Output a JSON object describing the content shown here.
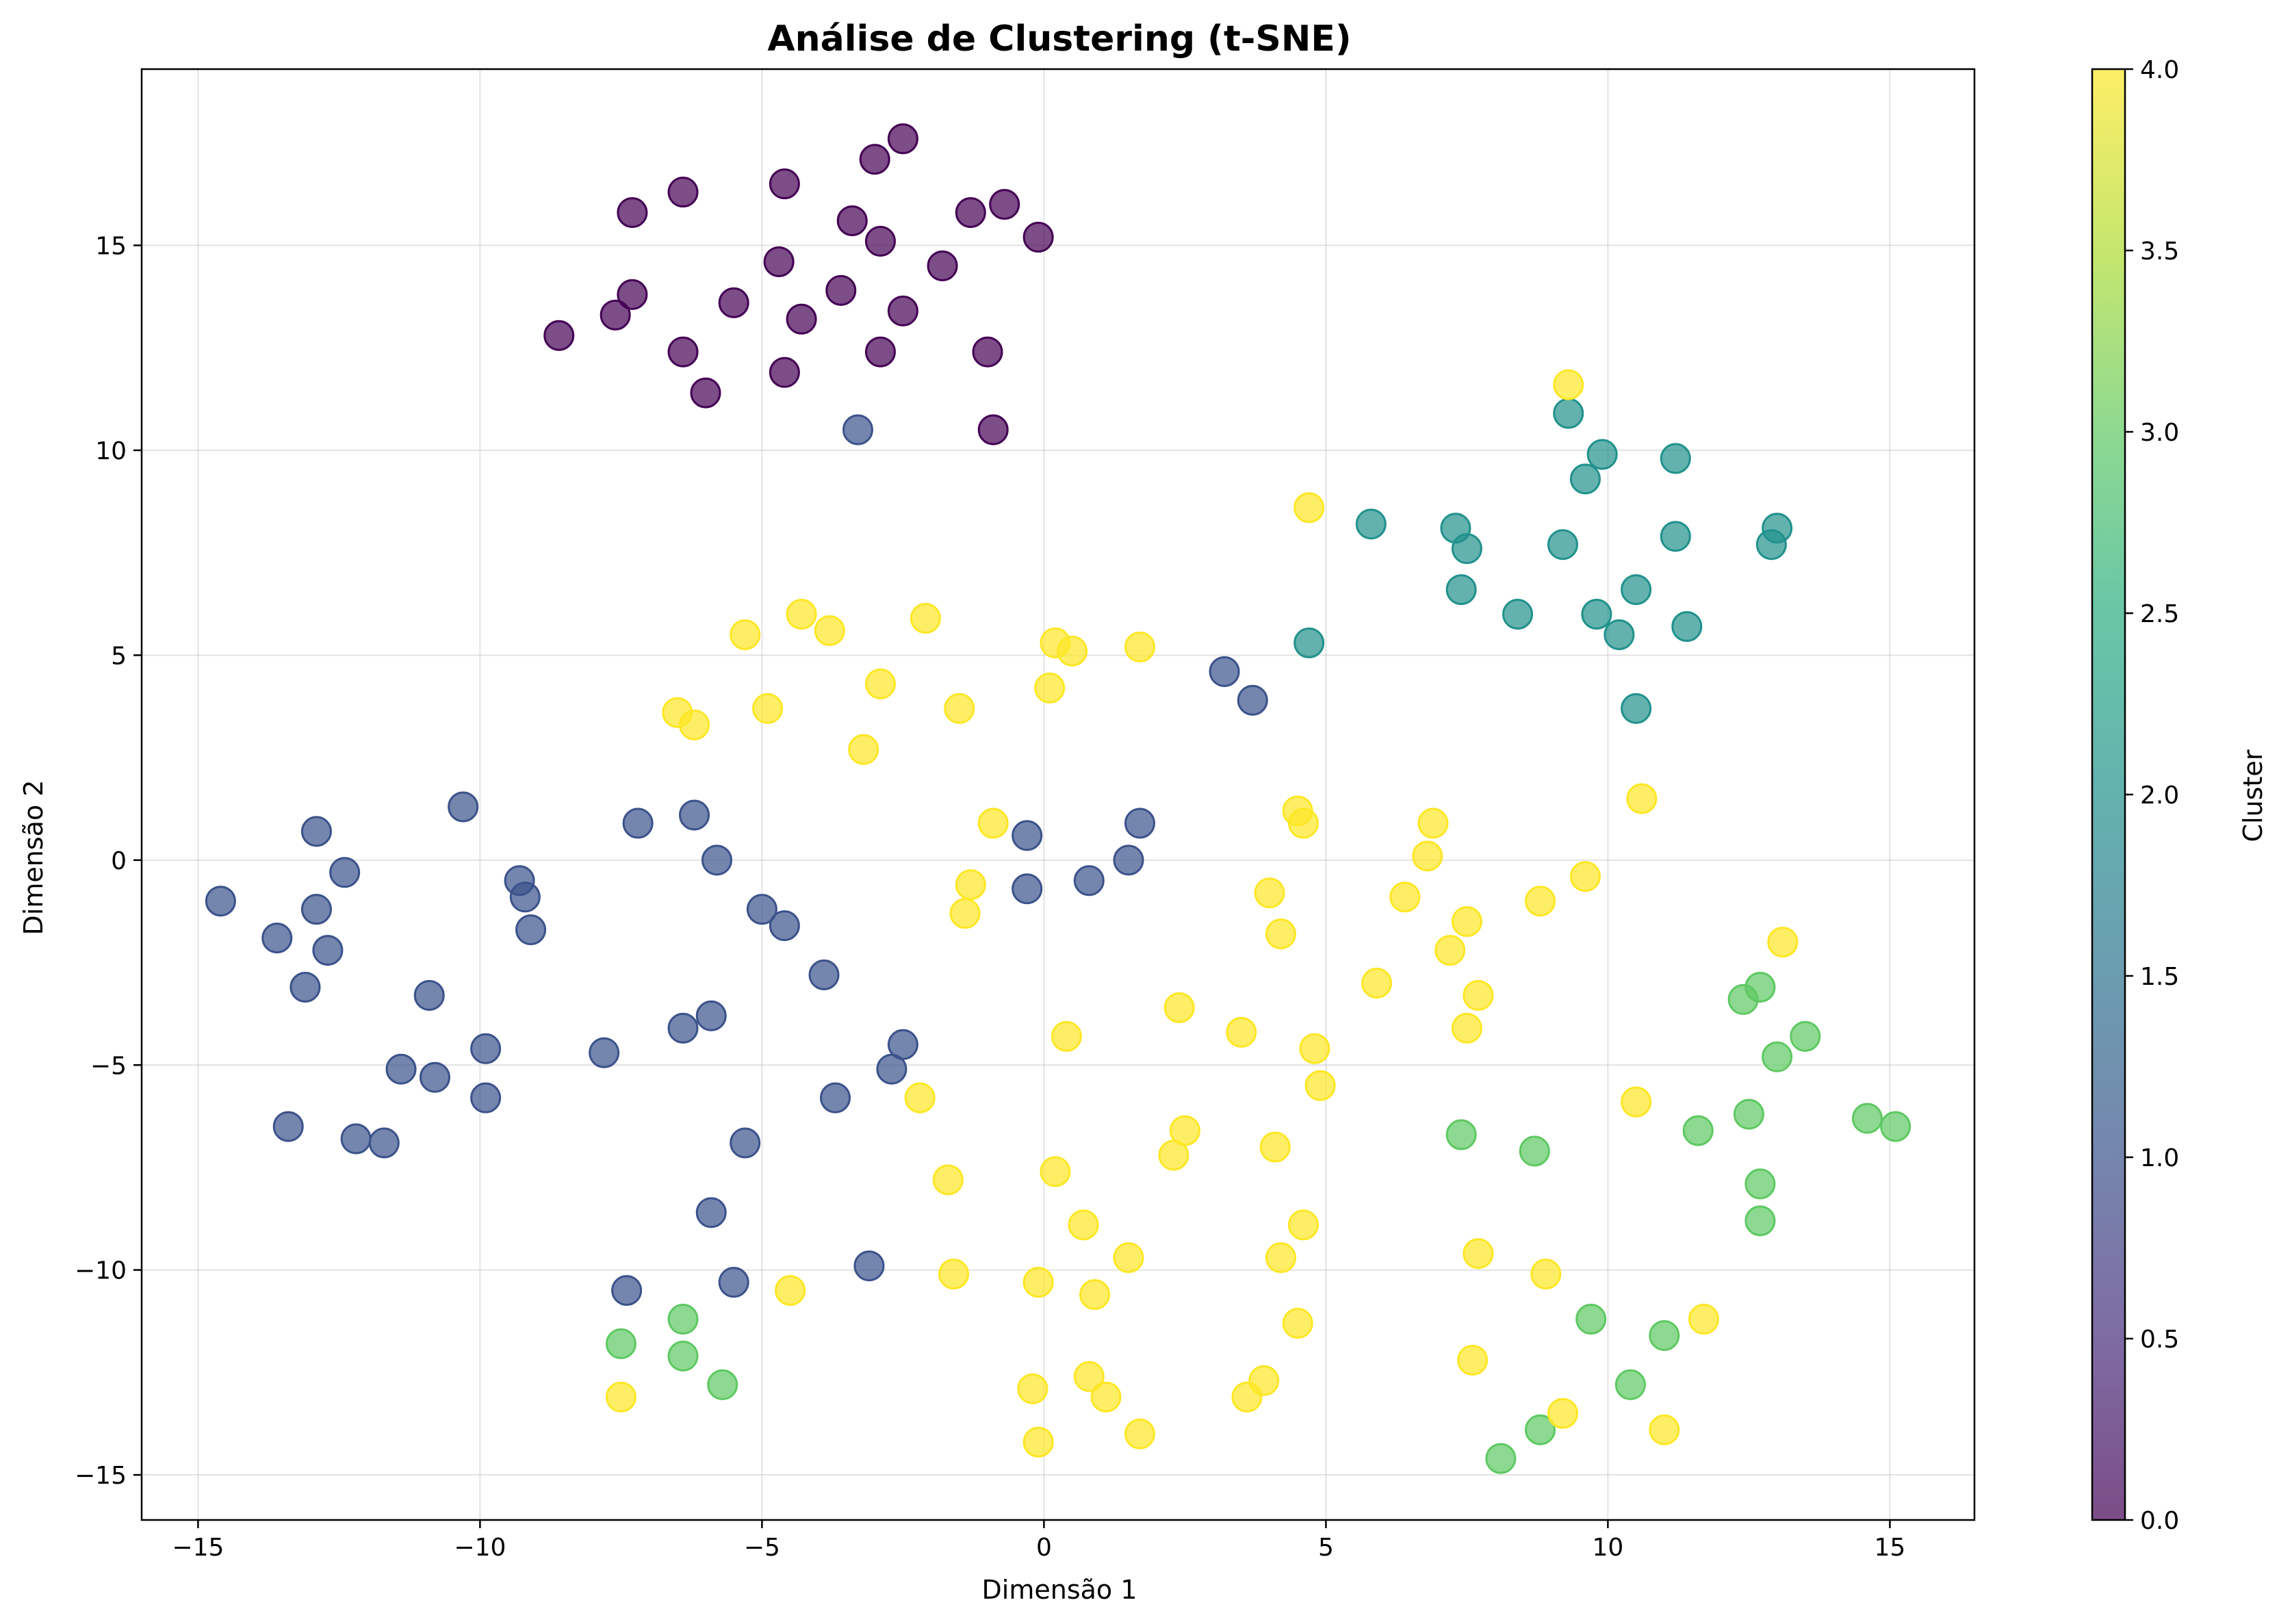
{
  "chart_data": {
    "type": "scatter",
    "title": "Análise de Clustering (t-SNE)",
    "xlabel": "Dimensão 1",
    "ylabel": "Dimensão 2",
    "xlim": [
      -16,
      16.5
    ],
    "ylim": [
      -16.1,
      19.3
    ],
    "xticks": [
      -15,
      -10,
      -5,
      0,
      5,
      10,
      15
    ],
    "yticks": [
      -15,
      -10,
      -5,
      0,
      5,
      10,
      15
    ],
    "xtick_labels": [
      "−15",
      "−10",
      "−5",
      "0",
      "5",
      "10",
      "15"
    ],
    "ytick_labels": [
      "−15",
      "−10",
      "−5",
      "0",
      "5",
      "10",
      "15"
    ],
    "grid": true,
    "colormap": "viridis",
    "colorbar": {
      "label": "Cluster",
      "range": [
        0,
        4
      ],
      "ticks": [
        0,
        0.5,
        1,
        1.5,
        2,
        2.5,
        3,
        3.5,
        4
      ],
      "tick_labels": [
        "0.0",
        "0.5",
        "1.0",
        "1.5",
        "2.0",
        "2.5",
        "3.0",
        "3.5",
        "4.0"
      ]
    },
    "cluster_colors": [
      "#440154",
      "#3b528b",
      "#21918c",
      "#5ec962",
      "#fde725"
    ],
    "point_alpha": 0.7,
    "series": [
      {
        "cluster": 0,
        "points": [
          [
            -2.5,
            17.6
          ],
          [
            -3.0,
            17.1
          ],
          [
            -6.4,
            16.3
          ],
          [
            -4.6,
            16.5
          ],
          [
            -7.3,
            15.8
          ],
          [
            -0.7,
            16.0
          ],
          [
            -1.3,
            15.8
          ],
          [
            -3.4,
            15.6
          ],
          [
            -2.9,
            15.1
          ],
          [
            -0.1,
            15.2
          ],
          [
            -4.7,
            14.6
          ],
          [
            -1.8,
            14.5
          ],
          [
            -7.3,
            13.8
          ],
          [
            -3.6,
            13.9
          ],
          [
            -5.5,
            13.6
          ],
          [
            -2.5,
            13.4
          ],
          [
            -7.6,
            13.3
          ],
          [
            -4.3,
            13.2
          ],
          [
            -8.6,
            12.8
          ],
          [
            -6.4,
            12.4
          ],
          [
            -2.9,
            12.4
          ],
          [
            -1.0,
            12.4
          ],
          [
            -4.6,
            11.9
          ],
          [
            -6.0,
            11.4
          ],
          [
            -0.9,
            10.5
          ]
        ]
      },
      {
        "cluster": 1,
        "points": [
          [
            -3.3,
            10.5
          ],
          [
            3.2,
            4.6
          ],
          [
            3.7,
            3.9
          ],
          [
            -10.3,
            1.3
          ],
          [
            -6.2,
            1.1
          ],
          [
            -7.2,
            0.9
          ],
          [
            1.7,
            0.9
          ],
          [
            -12.9,
            0.7
          ],
          [
            -0.3,
            0.6
          ],
          [
            -5.8,
            0.0
          ],
          [
            1.5,
            0.0
          ],
          [
            -12.4,
            -0.3
          ],
          [
            -9.3,
            -0.5
          ],
          [
            0.8,
            -0.5
          ],
          [
            -14.6,
            -1.0
          ],
          [
            -9.2,
            -0.9
          ],
          [
            -0.3,
            -0.7
          ],
          [
            -12.9,
            -1.2
          ],
          [
            -5.0,
            -1.2
          ],
          [
            -4.6,
            -1.6
          ],
          [
            -13.6,
            -1.9
          ],
          [
            -9.1,
            -1.7
          ],
          [
            -12.7,
            -2.2
          ],
          [
            -3.9,
            -2.8
          ],
          [
            -13.1,
            -3.1
          ],
          [
            -10.9,
            -3.3
          ],
          [
            -5.9,
            -3.8
          ],
          [
            -6.4,
            -4.1
          ],
          [
            -2.5,
            -4.5
          ],
          [
            -9.9,
            -4.6
          ],
          [
            -7.8,
            -4.7
          ],
          [
            -11.4,
            -5.1
          ],
          [
            -2.7,
            -5.1
          ],
          [
            -10.8,
            -5.3
          ],
          [
            -9.9,
            -5.8
          ],
          [
            -3.7,
            -5.8
          ],
          [
            -13.4,
            -6.5
          ],
          [
            -12.2,
            -6.8
          ],
          [
            -11.7,
            -6.9
          ],
          [
            -5.3,
            -6.9
          ],
          [
            -5.9,
            -8.6
          ],
          [
            -3.1,
            -9.9
          ],
          [
            -5.5,
            -10.3
          ],
          [
            -7.4,
            -10.5
          ]
        ]
      },
      {
        "cluster": 2,
        "points": [
          [
            9.3,
            10.9
          ],
          [
            9.9,
            9.9
          ],
          [
            11.2,
            9.8
          ],
          [
            9.6,
            9.3
          ],
          [
            5.8,
            8.2
          ],
          [
            7.3,
            8.1
          ],
          [
            13.0,
            8.1
          ],
          [
            11.2,
            7.9
          ],
          [
            7.5,
            7.6
          ],
          [
            9.2,
            7.7
          ],
          [
            12.9,
            7.7
          ],
          [
            7.4,
            6.6
          ],
          [
            10.5,
            6.6
          ],
          [
            8.4,
            6.0
          ],
          [
            9.8,
            6.0
          ],
          [
            10.2,
            5.5
          ],
          [
            11.4,
            5.7
          ],
          [
            4.7,
            5.3
          ],
          [
            10.5,
            3.7
          ]
        ]
      },
      {
        "cluster": 3,
        "points": [
          [
            12.7,
            -3.1
          ],
          [
            12.4,
            -3.4
          ],
          [
            13.5,
            -4.3
          ],
          [
            13.0,
            -4.8
          ],
          [
            12.5,
            -6.2
          ],
          [
            14.6,
            -6.3
          ],
          [
            15.1,
            -6.5
          ],
          [
            11.6,
            -6.6
          ],
          [
            7.4,
            -6.7
          ],
          [
            8.7,
            -7.1
          ],
          [
            12.7,
            -7.9
          ],
          [
            12.7,
            -8.8
          ],
          [
            -6.4,
            -11.2
          ],
          [
            9.7,
            -11.2
          ],
          [
            11.0,
            -11.6
          ],
          [
            -7.5,
            -11.8
          ],
          [
            -6.4,
            -12.1
          ],
          [
            -5.7,
            -12.8
          ],
          [
            10.4,
            -12.8
          ],
          [
            8.8,
            -13.9
          ],
          [
            8.1,
            -14.6
          ]
        ]
      },
      {
        "cluster": 4,
        "points": [
          [
            9.3,
            11.6
          ],
          [
            4.7,
            8.6
          ],
          [
            -4.3,
            6.0
          ],
          [
            -2.1,
            5.9
          ],
          [
            -5.3,
            5.5
          ],
          [
            -3.8,
            5.6
          ],
          [
            0.2,
            5.3
          ],
          [
            0.5,
            5.1
          ],
          [
            1.7,
            5.2
          ],
          [
            -2.9,
            4.3
          ],
          [
            0.1,
            4.2
          ],
          [
            -6.5,
            3.6
          ],
          [
            -6.2,
            3.3
          ],
          [
            -4.9,
            3.7
          ],
          [
            -1.5,
            3.7
          ],
          [
            -3.2,
            2.7
          ],
          [
            10.6,
            1.5
          ],
          [
            4.5,
            1.2
          ],
          [
            4.6,
            0.9
          ],
          [
            6.9,
            0.9
          ],
          [
            -0.9,
            0.9
          ],
          [
            6.8,
            0.1
          ],
          [
            9.6,
            -0.4
          ],
          [
            -1.3,
            -0.6
          ],
          [
            4.0,
            -0.8
          ],
          [
            6.4,
            -0.9
          ],
          [
            8.8,
            -1.0
          ],
          [
            7.5,
            -1.5
          ],
          [
            -1.4,
            -1.3
          ],
          [
            4.2,
            -1.8
          ],
          [
            13.1,
            -2.0
          ],
          [
            7.2,
            -2.2
          ],
          [
            5.9,
            -3.0
          ],
          [
            7.7,
            -3.3
          ],
          [
            2.4,
            -3.6
          ],
          [
            7.5,
            -4.1
          ],
          [
            3.5,
            -4.2
          ],
          [
            0.4,
            -4.3
          ],
          [
            4.8,
            -4.6
          ],
          [
            4.9,
            -5.5
          ],
          [
            -2.2,
            -5.8
          ],
          [
            10.5,
            -5.9
          ],
          [
            2.5,
            -6.6
          ],
          [
            2.3,
            -7.2
          ],
          [
            4.1,
            -7.0
          ],
          [
            0.2,
            -7.6
          ],
          [
            -1.7,
            -7.8
          ],
          [
            0.7,
            -8.9
          ],
          [
            4.6,
            -8.9
          ],
          [
            1.5,
            -9.7
          ],
          [
            4.2,
            -9.7
          ],
          [
            7.7,
            -9.6
          ],
          [
            -1.6,
            -10.1
          ],
          [
            8.9,
            -10.1
          ],
          [
            -0.1,
            -10.3
          ],
          [
            0.9,
            -10.6
          ],
          [
            -4.5,
            -10.5
          ],
          [
            4.5,
            -11.3
          ],
          [
            11.7,
            -11.2
          ],
          [
            7.6,
            -12.2
          ],
          [
            0.8,
            -12.6
          ],
          [
            3.9,
            -12.7
          ],
          [
            -0.2,
            -12.9
          ],
          [
            1.1,
            -13.1
          ],
          [
            3.6,
            -13.1
          ],
          [
            -7.5,
            -13.1
          ],
          [
            9.2,
            -13.5
          ],
          [
            1.7,
            -14.0
          ],
          [
            11.0,
            -13.9
          ],
          [
            -0.1,
            -14.2
          ]
        ]
      }
    ]
  }
}
